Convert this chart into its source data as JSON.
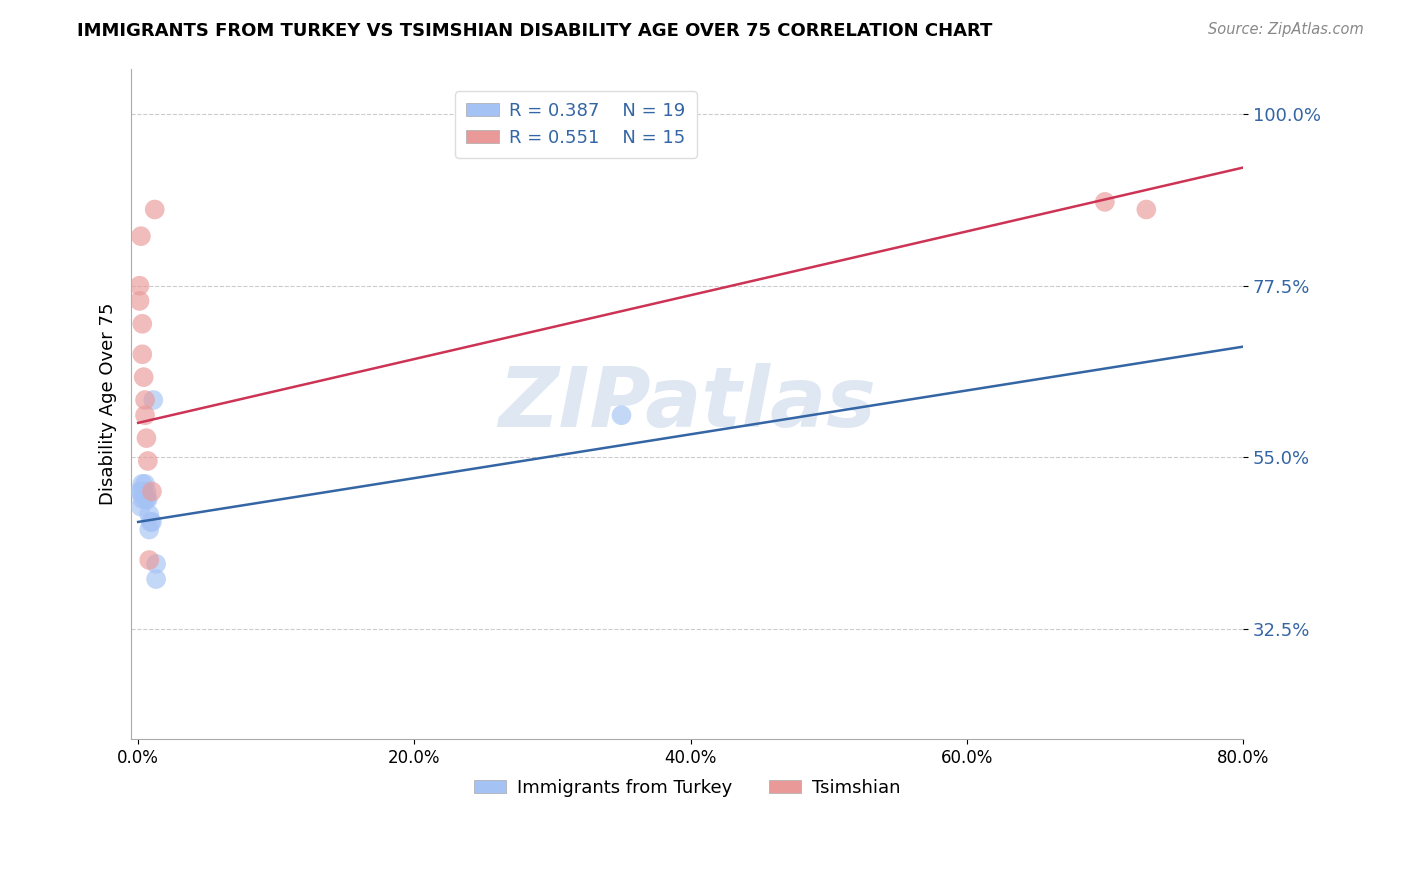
{
  "title": "IMMIGRANTS FROM TURKEY VS TSIMSHIAN DISABILITY AGE OVER 75 CORRELATION CHART",
  "source_text": "Source: ZipAtlas.com",
  "ylabel": "Disability Age Over 75",
  "blue_label": "Immigrants from Turkey",
  "pink_label": "Tsimshian",
  "blue_R": 0.387,
  "blue_N": 19,
  "pink_R": 0.551,
  "pink_N": 15,
  "blue_color": "#a4c2f4",
  "pink_color": "#ea9999",
  "blue_line_color": "#3465a4",
  "pink_line_color": "#cc3355",
  "watermark": "ZIPatlas",
  "xlim": [
    -0.005,
    0.8
  ],
  "ylim": [
    0.18,
    1.06
  ],
  "yticks": [
    0.325,
    0.55,
    0.775,
    1.0
  ],
  "ytick_labels": [
    "32.5%",
    "55.0%",
    "77.5%",
    "100.0%"
  ],
  "xticks": [
    0.0,
    0.2,
    0.4,
    0.6,
    0.8
  ],
  "xtick_labels": [
    "0.0%",
    "20.0%",
    "40.0%",
    "60.0%",
    "80.0%"
  ],
  "blue_scatter_x": [
    0.001,
    0.002,
    0.002,
    0.003,
    0.003,
    0.004,
    0.005,
    0.005,
    0.006,
    0.006,
    0.007,
    0.008,
    0.008,
    0.009,
    0.01,
    0.011,
    0.013,
    0.013,
    0.35
  ],
  "blue_scatter_y": [
    0.505,
    0.505,
    0.485,
    0.495,
    0.515,
    0.505,
    0.515,
    0.495,
    0.495,
    0.505,
    0.495,
    0.455,
    0.475,
    0.465,
    0.465,
    0.625,
    0.41,
    0.39,
    0.605
  ],
  "pink_scatter_x": [
    0.001,
    0.001,
    0.002,
    0.003,
    0.003,
    0.004,
    0.005,
    0.005,
    0.006,
    0.007,
    0.008,
    0.01,
    0.012,
    0.7,
    0.73
  ],
  "pink_scatter_y": [
    0.775,
    0.755,
    0.84,
    0.725,
    0.685,
    0.655,
    0.605,
    0.625,
    0.575,
    0.545,
    0.415,
    0.505,
    0.875,
    0.885,
    0.875
  ],
  "blue_line_y0": 0.465,
  "blue_line_y1": 0.695,
  "pink_line_y0": 0.595,
  "pink_line_y1": 0.93
}
